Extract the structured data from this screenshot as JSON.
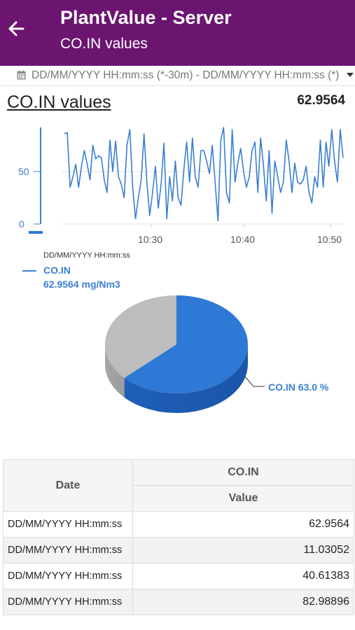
{
  "appbar": {
    "title": "PlantValue - Server",
    "subtitle": "CO.IN values"
  },
  "date_range": "DD/MM/YYYY HH:mm:ss (*-30m) - DD/MM/YYYY HH:mm:ss (*)",
  "section": {
    "title": "CO.IN values",
    "current_value": "62.9564"
  },
  "legend": {
    "date": "DD/MM/YYYY HH:mm:ss",
    "name": "CO.IN",
    "value": "62.9564 mg/Nm3"
  },
  "pie": {
    "label": "CO.IN 63.0 %"
  },
  "table": {
    "header_date": "Date",
    "header_series": "CO.IN",
    "header_value": "Value",
    "rows": [
      {
        "date": "DD/MM/YYYY HH:mm:ss",
        "value": "62.9564"
      },
      {
        "date": "DD/MM/YYYY HH:mm:ss",
        "value": "11.03052"
      },
      {
        "date": "DD/MM/YYYY HH:mm:ss",
        "value": "40.61383"
      },
      {
        "date": "DD/MM/YYYY HH:mm:ss",
        "value": "82.98896"
      }
    ]
  },
  "colors": {
    "appbar": "#6b1470",
    "series": "#3a7fd0",
    "pie_primary": "#2e78d6",
    "pie_secondary": "#bdbdbd"
  },
  "chart_data": [
    {
      "type": "line",
      "title": "",
      "xlabel": "",
      "ylabel": "",
      "x_ticks": [
        "10:30",
        "10:40",
        "10:50"
      ],
      "y_ticks": [
        "0",
        "50"
      ],
      "ylim": [
        0,
        100
      ],
      "grid": true,
      "legend": "bottom-left",
      "series": [
        {
          "name": "CO.IN",
          "values": [
            86,
            87,
            35,
            45,
            57,
            35,
            55,
            70,
            57,
            42,
            75,
            62,
            65,
            63,
            42,
            30,
            80,
            50,
            79,
            45,
            38,
            25,
            75,
            90,
            35,
            5,
            25,
            42,
            86,
            40,
            8,
            30,
            55,
            15,
            38,
            77,
            5,
            45,
            22,
            60,
            25,
            18,
            52,
            78,
            40,
            82,
            45,
            35,
            70,
            70,
            60,
            48,
            75,
            40,
            3,
            80,
            92,
            30,
            20,
            90,
            40,
            58,
            72,
            50,
            35,
            45,
            70,
            78,
            30,
            82,
            55,
            22,
            70,
            10,
            60,
            45,
            30,
            40,
            80,
            60,
            30,
            58,
            40,
            38,
            42,
            55,
            30,
            20,
            45,
            35,
            80,
            35,
            78,
            55,
            90,
            60,
            40,
            90,
            63
          ]
        }
      ]
    },
    {
      "type": "pie",
      "title": "",
      "categories": [
        "CO.IN",
        ""
      ],
      "values": [
        63.0,
        37.0
      ],
      "labels": [
        "CO.IN 63.0 %"
      ]
    }
  ]
}
